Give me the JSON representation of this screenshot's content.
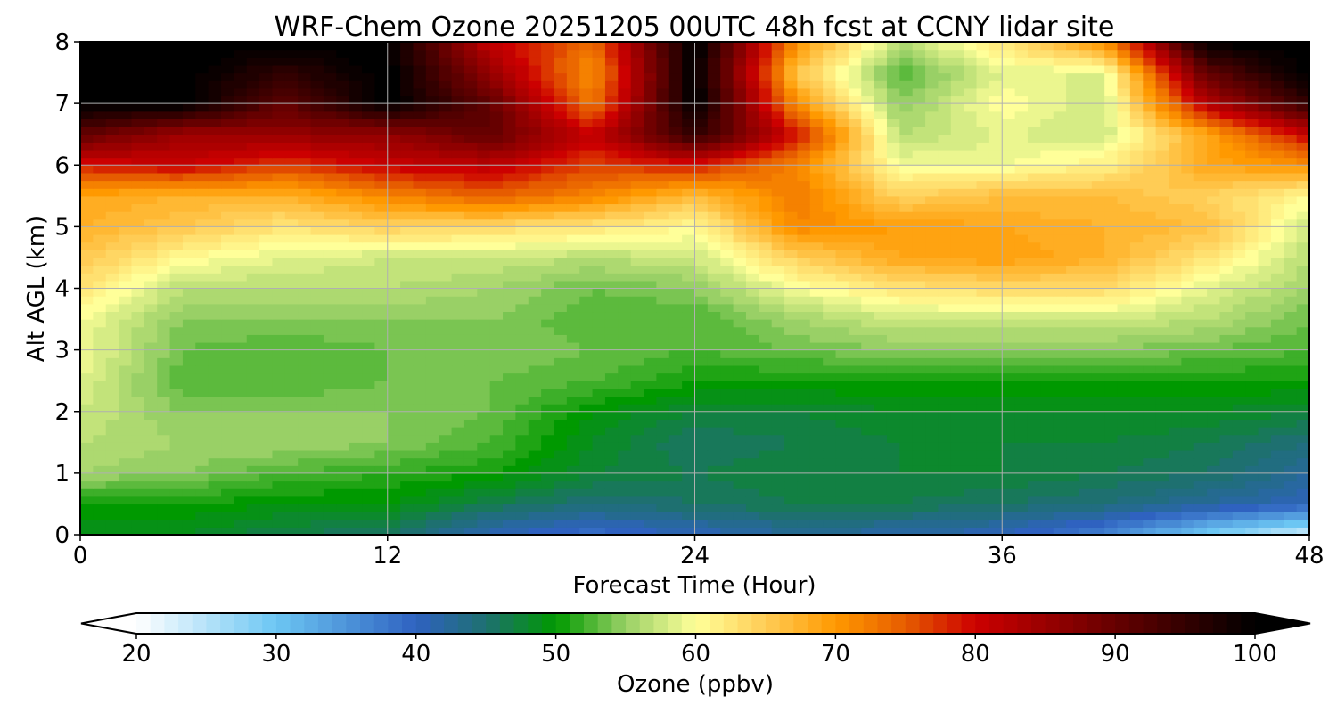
{
  "chart_data": {
    "type": "heatmap",
    "title": "WRF-Chem Ozone  20251205 00UTC 48h fcst at CCNY lidar site",
    "xlabel": "Forecast Time (Hour)",
    "ylabel": "Alt AGL (km)",
    "xlim": [
      0,
      48
    ],
    "ylim": [
      0,
      8
    ],
    "x_ticks": [
      "0",
      "12",
      "24",
      "36",
      "48"
    ],
    "y_ticks": [
      "0",
      "1",
      "2",
      "3",
      "4",
      "5",
      "6",
      "7",
      "8"
    ],
    "grid": true,
    "z_label": "Ozone  (ppbv)",
    "z_range": [
      20,
      100
    ],
    "colorbar_ticks": [
      "20",
      "30",
      "40",
      "50",
      "60",
      "70",
      "80",
      "90",
      "100"
    ],
    "colorbar_extend": "both",
    "colormap": [
      {
        "value": 20,
        "color": "#ffffff"
      },
      {
        "value": 30,
        "color": "#6cc6f3"
      },
      {
        "value": 40,
        "color": "#2f62c0"
      },
      {
        "value": 45,
        "color": "#1e7070"
      },
      {
        "value": 50,
        "color": "#009900"
      },
      {
        "value": 55,
        "color": "#99d066"
      },
      {
        "value": 60,
        "color": "#ffff99"
      },
      {
        "value": 65,
        "color": "#ffcc55"
      },
      {
        "value": 70,
        "color": "#ff9900"
      },
      {
        "value": 75,
        "color": "#e65c00"
      },
      {
        "value": 80,
        "color": "#cc0000"
      },
      {
        "value": 90,
        "color": "#660000"
      },
      {
        "value": 100,
        "color": "#000000"
      }
    ],
    "grid_x_hours": [
      0,
      4,
      8,
      12,
      16,
      20,
      24,
      28,
      32,
      36,
      40,
      44,
      48
    ],
    "grid_y_km": [
      0,
      0.5,
      1,
      1.5,
      2,
      2.5,
      3,
      3.5,
      4,
      4.5,
      5,
      5.5,
      6,
      6.5,
      7,
      7.5,
      8
    ],
    "ozone_ppbv": [
      [
        48,
        48,
        46,
        45,
        40,
        38,
        40,
        42,
        41,
        40,
        36,
        28,
        22
      ],
      [
        50,
        50,
        49,
        49,
        46,
        44,
        45,
        46,
        46,
        45,
        44,
        42,
        40
      ],
      [
        55,
        54,
        52,
        51,
        50,
        47,
        46,
        47,
        47,
        47,
        46,
        45,
        42
      ],
      [
        56,
        55,
        55,
        54,
        52,
        48,
        45,
        46,
        47,
        47,
        47,
        46,
        44
      ],
      [
        57,
        54,
        54,
        54,
        53,
        49,
        47,
        47,
        48,
        48,
        48,
        48,
        47
      ],
      [
        58,
        52,
        52,
        53,
        53,
        52,
        50,
        50,
        50,
        50,
        50,
        50,
        50
      ],
      [
        59,
        53,
        52,
        53,
        54,
        53,
        52,
        53,
        54,
        54,
        54,
        53,
        52
      ],
      [
        59,
        54,
        54,
        54,
        54,
        52,
        52,
        55,
        57,
        57,
        57,
        56,
        53
      ],
      [
        62,
        56,
        56,
        56,
        55,
        53,
        54,
        59,
        62,
        63,
        63,
        58,
        55
      ],
      [
        65,
        60,
        58,
        57,
        57,
        56,
        57,
        64,
        68,
        69,
        67,
        62,
        56
      ],
      [
        67,
        65,
        62,
        64,
        63,
        62,
        60,
        71,
        69,
        68,
        67,
        66,
        57
      ],
      [
        68,
        67,
        67,
        71,
        74,
        71,
        66,
        72,
        64,
        66,
        66,
        64,
        60
      ],
      [
        78,
        80,
        76,
        80,
        81,
        76,
        78,
        71,
        59,
        59,
        61,
        68,
        70
      ],
      [
        90,
        84,
        85,
        85,
        90,
        80,
        95,
        79,
        56,
        58,
        57,
        68,
        80
      ],
      [
        100,
        100,
        90,
        100,
        90,
        72,
        100,
        70,
        54,
        60,
        57,
        82,
        95
      ],
      [
        100,
        100,
        95,
        100,
        85,
        70,
        100,
        65,
        52,
        58,
        58,
        90,
        100
      ],
      [
        100,
        100,
        100,
        100,
        80,
        73,
        100,
        70,
        56,
        62,
        70,
        100,
        100
      ]
    ]
  }
}
